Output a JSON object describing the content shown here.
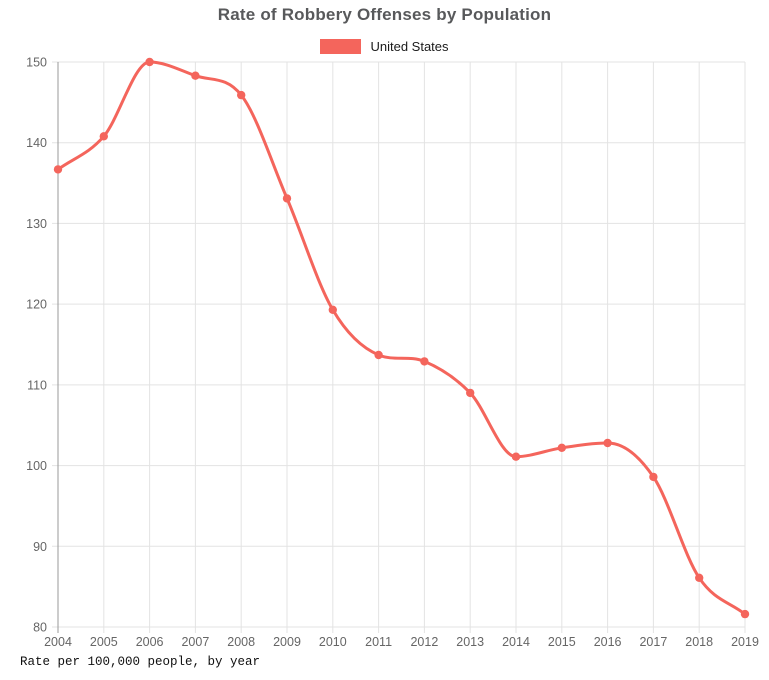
{
  "title": "Rate of Robbery Offenses by Population",
  "legend": {
    "label": "United States",
    "swatch_color": "#f4655c"
  },
  "footnote": "Rate per 100,000 people, by year",
  "colors": {
    "line": "#f4655c",
    "point": "#f4655c",
    "title_text": "#58595b",
    "axis_text": "#666666",
    "gridline": "#e3e3e3",
    "axis_line": "#999999",
    "background": "#ffffff"
  },
  "chart_data": {
    "type": "line",
    "title": "Rate of Robbery Offenses by Population",
    "xlabel": "",
    "ylabel": "",
    "categories": [
      "2004",
      "2005",
      "2006",
      "2007",
      "2008",
      "2009",
      "2010",
      "2011",
      "2012",
      "2013",
      "2014",
      "2015",
      "2016",
      "2017",
      "2018",
      "2019"
    ],
    "series": [
      {
        "name": "United States",
        "color": "#f4655c",
        "values": [
          136.7,
          140.8,
          150.0,
          148.3,
          145.9,
          133.1,
          119.3,
          113.7,
          112.9,
          109.0,
          101.1,
          102.2,
          102.8,
          98.6,
          86.1,
          81.6
        ]
      }
    ],
    "ylim": [
      80,
      150
    ],
    "ytick_step": 10,
    "yticks": [
      80,
      90,
      100,
      110,
      120,
      130,
      140,
      150
    ],
    "grid": true,
    "smooth": true,
    "point_markers": true,
    "legend_position": "top",
    "caption": "Rate per 100,000 people, by year"
  }
}
